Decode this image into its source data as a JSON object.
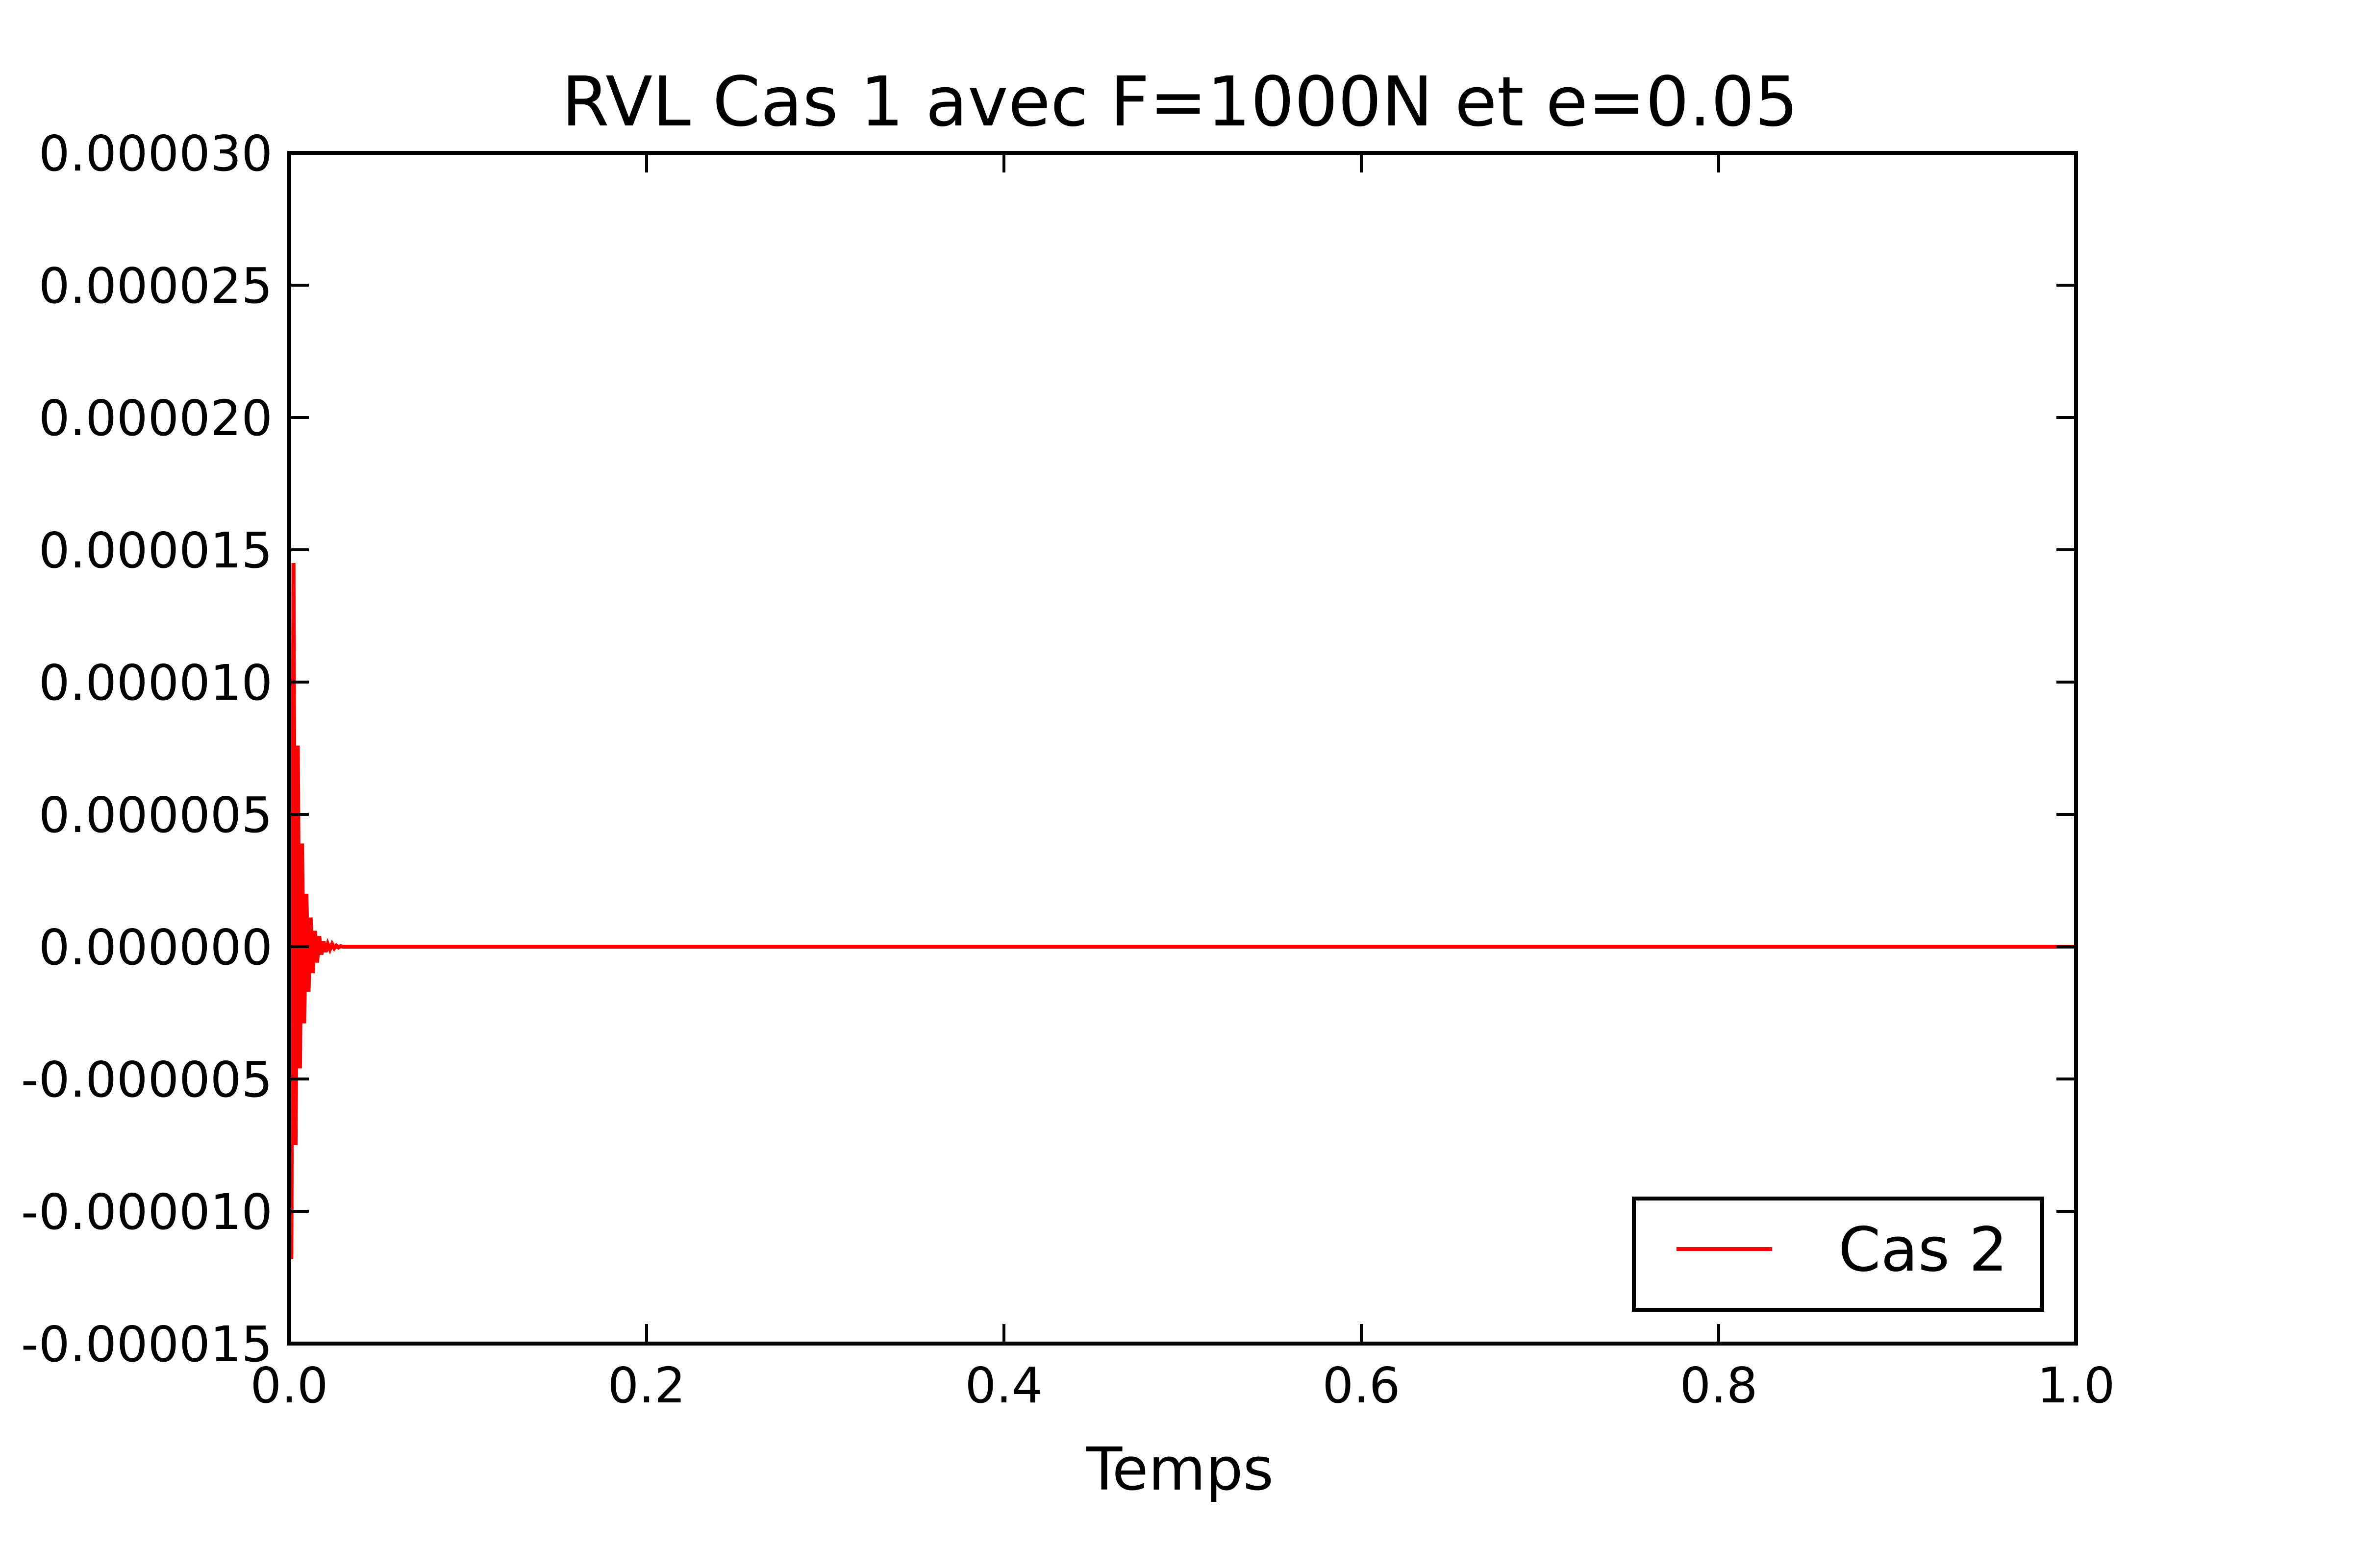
{
  "chart_data": {
    "type": "line",
    "title": "RVL Cas 1 avec F=1000N et e=0.05",
    "xlabel": "Temps",
    "ylabel": "",
    "xlim": [
      0.0,
      1.0
    ],
    "ylim": [
      -1.5e-05,
      3e-05
    ],
    "x_ticks": [
      "0.0",
      "0.2",
      "0.4",
      "0.6",
      "0.8",
      "1.0"
    ],
    "y_ticks": [
      "-0.000015",
      "-0.000010",
      "-0.000005",
      "0.000000",
      "0.000005",
      "0.000010",
      "0.000015",
      "0.000020",
      "0.000025",
      "0.000030"
    ],
    "grid": false,
    "legend_position": "lower-right",
    "series": [
      {
        "name": "Cas 2",
        "color": "#ff0000",
        "description_points": {
          "x": [
            0.0,
            0.0012,
            0.0024,
            0.0036,
            0.0048,
            0.006,
            0.0072,
            0.0084,
            0.0096,
            0.0108,
            0.012,
            0.0132,
            0.0144,
            0.0156,
            0.0168,
            0.018,
            0.0192,
            0.0204,
            0.0216,
            0.0228,
            0.024,
            0.0252,
            0.0264,
            0.0276,
            0.0288,
            0.03,
            0.033,
            0.036,
            0.04,
            0.1,
            0.2,
            0.4,
            0.6,
            0.8,
            1.0
          ],
          "y": [
            0.0,
            -1.18e-05,
            1.45e-05,
            -7.5e-06,
            7.6e-06,
            -4.6e-06,
            3.9e-06,
            -2.9e-06,
            2e-06,
            -1.7e-06,
            1.1e-06,
            -1e-06,
            6e-07,
            -6e-07,
            4e-07,
            -3e-07,
            2e-07,
            -2e-07,
            1e-07,
            -1e-07,
            1e-07,
            -6e-08,
            4e-08,
            -3e-08,
            2e-08,
            0.0,
            0.0,
            0.0,
            0.0,
            0.0,
            0.0,
            0.0,
            0.0,
            0.0,
            0.0
          ]
        }
      }
    ]
  }
}
